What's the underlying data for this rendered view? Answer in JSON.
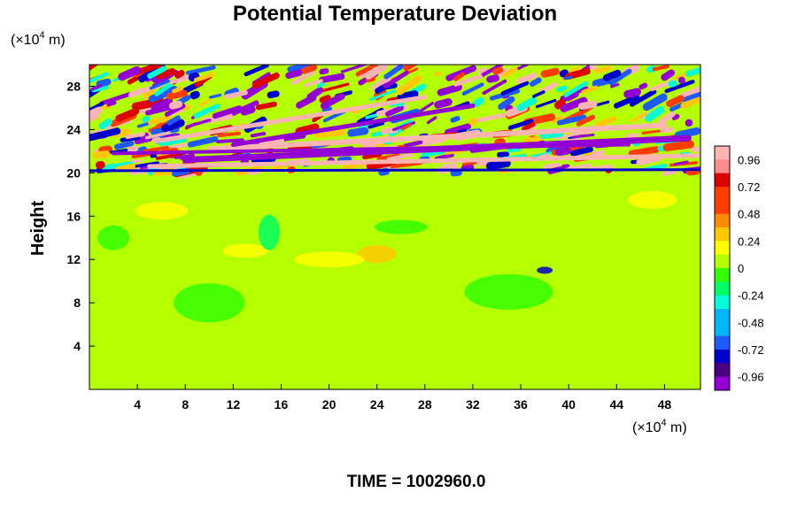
{
  "chart_data": {
    "type": "heatmap",
    "title": "Potential Temperature Deviation",
    "ylabel": "Height",
    "xlabel": "",
    "x_unit_base": "(×10",
    "x_unit_exp": "4",
    "x_unit_tail": " m)",
    "y_unit_base": "(×10",
    "y_unit_exp": "4",
    "y_unit_tail": " m)",
    "xlim": [
      0,
      51
    ],
    "ylim": [
      0,
      30
    ],
    "x_ticks": [
      4,
      8,
      12,
      16,
      20,
      24,
      28,
      32,
      36,
      40,
      44,
      48
    ],
    "y_ticks": [
      4,
      8,
      12,
      16,
      20,
      24,
      28
    ],
    "colorbar": {
      "range": [
        -1.08,
        1.08
      ],
      "ticks": [
        0.96,
        0.72,
        0.48,
        0.24,
        0,
        -0.24,
        -0.48,
        -0.72,
        -0.96
      ],
      "tick_labels": [
        "0.96",
        "0.72",
        "0.48",
        "0.24",
        "0",
        "-0.24",
        "-0.48",
        "-0.72",
        "-0.96"
      ],
      "levels": 18
    },
    "colormap": [
      "#9400d3",
      "#4b0082",
      "#0000cd",
      "#1e5aff",
      "#00b4ff",
      "#00ffd2",
      "#00ff64",
      "#32ff00",
      "#b4ff00",
      "#ffff00",
      "#ffc800",
      "#ff8c00",
      "#ff3c00",
      "#dc0000",
      "#ff8c8c",
      "#ffb4b4"
    ],
    "regions": [
      {
        "name": "upper-layer",
        "y_range": [
          20,
          30
        ],
        "pattern": "strong alternating positive/negative bands, amplitude ~±0.96 and beyond"
      },
      {
        "name": "lower-layer",
        "y_range": [
          0,
          20
        ],
        "pattern": "weak deviations, mostly 0 to 0.1, local maxima ~0.3 near x=24, y=12"
      }
    ],
    "footer": "TIME = 1002960.0"
  }
}
